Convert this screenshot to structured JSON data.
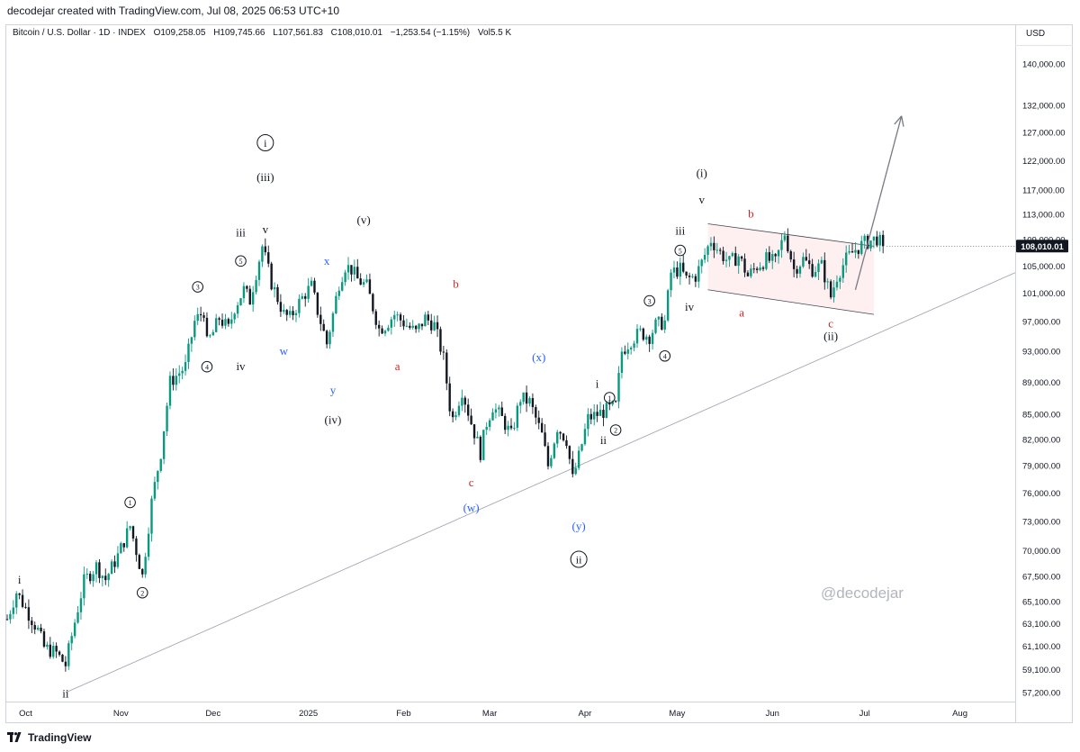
{
  "header": {
    "attribution": "decodejar created with TradingView.com, Jul 08, 2025 06:53 UTC+10"
  },
  "symbol_info": {
    "name": "Bitcoin / U.S. Dollar · 1D · INDEX",
    "open": "O109,258.05",
    "high": "H109,745.66",
    "low": "L107,561.83",
    "close": "C108,010.01",
    "change": "−1,253.54 (−1.15%)",
    "volume": "Vol5.5 K"
  },
  "currency": "USD",
  "watermark": "@decodejar",
  "footer": {
    "brand": "TradingView"
  },
  "chart_data": {
    "type": "candlestick",
    "symbol": "Bitcoin / U.S. Dollar",
    "scale": "log",
    "last_price": "108,010.01",
    "y_ticks": [
      "140,000.00",
      "132,000.00",
      "127,000.00",
      "122,000.00",
      "117,000.00",
      "113,000.00",
      "109,000.00",
      "105,000.00",
      "101,000.00",
      "97,000.00",
      "93,000.00",
      "89,000.00",
      "85,000.00",
      "82,000.00",
      "79,000.00",
      "76,000.00",
      "73,000.00",
      "70,000.00",
      "67,500.00",
      "65,100.00",
      "63,100.00",
      "61,100.00",
      "59,100.00",
      "57,200.00"
    ],
    "y_tick_values": [
      140000,
      132000,
      127000,
      122000,
      117000,
      113000,
      109000,
      105000,
      101000,
      97000,
      93000,
      89000,
      85000,
      82000,
      79000,
      76000,
      73000,
      70000,
      67500,
      65100,
      63100,
      61100,
      59100,
      57200
    ],
    "x_ticks": [
      {
        "label": "Oct",
        "idx": 0
      },
      {
        "label": "Nov",
        "idx": 31
      },
      {
        "label": "Dec",
        "idx": 61
      },
      {
        "label": "2025",
        "idx": 92
      },
      {
        "label": "Feb",
        "idx": 123
      },
      {
        "label": "Mar",
        "idx": 151
      },
      {
        "label": "Apr",
        "idx": 182
      },
      {
        "label": "May",
        "idx": 212
      },
      {
        "label": "Jun",
        "idx": 243
      },
      {
        "label": "Jul",
        "idx": 273
      },
      {
        "label": "Aug",
        "idx": 304
      }
    ],
    "x_range_days": [
      -6,
      322
    ],
    "price_path": [
      [
        -6,
        63500
      ],
      [
        -3,
        66000
      ],
      [
        0,
        64500
      ],
      [
        4,
        62500
      ],
      [
        6,
        61000
      ],
      [
        10,
        60500
      ],
      [
        13,
        59500
      ],
      [
        15,
        62000
      ],
      [
        19,
        67000
      ],
      [
        23,
        68500
      ],
      [
        26,
        67200
      ],
      [
        30,
        69500
      ],
      [
        34,
        72500
      ],
      [
        36,
        70000
      ],
      [
        38,
        67500
      ],
      [
        41,
        75000
      ],
      [
        44,
        80500
      ],
      [
        47,
        89000
      ],
      [
        52,
        91000
      ],
      [
        55,
        97000
      ],
      [
        58,
        98500
      ],
      [
        59,
        94000
      ],
      [
        61,
        95500
      ],
      [
        63,
        97500
      ],
      [
        66,
        96000
      ],
      [
        68,
        99000
      ],
      [
        71,
        101500
      ],
      [
        73,
        100000
      ],
      [
        76,
        106000
      ],
      [
        77,
        108000
      ],
      [
        80,
        102500
      ],
      [
        84,
        98000
      ],
      [
        86,
        97500
      ],
      [
        88,
        99000
      ],
      [
        91,
        101000
      ],
      [
        93,
        102000
      ],
      [
        95,
        98500
      ],
      [
        98,
        94000
      ],
      [
        100,
        98000
      ],
      [
        102,
        102500
      ],
      [
        104,
        105000
      ],
      [
        106,
        104500
      ],
      [
        108,
        103000
      ],
      [
        111,
        102000
      ],
      [
        113,
        99000
      ],
      [
        115,
        96000
      ],
      [
        117,
        96500
      ],
      [
        120,
        98000
      ],
      [
        124,
        96500
      ],
      [
        127,
        95500
      ],
      [
        130,
        97500
      ],
      [
        133,
        96500
      ],
      [
        136,
        92000
      ],
      [
        138,
        86000
      ],
      [
        139,
        84500
      ],
      [
        142,
        88000
      ],
      [
        145,
        84000
      ],
      [
        148,
        80500
      ],
      [
        150,
        84000
      ],
      [
        152,
        86000
      ],
      [
        155,
        84500
      ],
      [
        158,
        82500
      ],
      [
        161,
        87000
      ],
      [
        164,
        86500
      ],
      [
        168,
        82500
      ],
      [
        170,
        79000
      ],
      [
        173,
        83500
      ],
      [
        176,
        82000
      ],
      [
        178,
        77500
      ],
      [
        180,
        80000
      ],
      [
        183,
        84500
      ],
      [
        186,
        85000
      ],
      [
        189,
        85500
      ],
      [
        192,
        86000
      ],
      [
        194,
        93000
      ],
      [
        197,
        94500
      ],
      [
        200,
        95500
      ],
      [
        203,
        95000
      ],
      [
        205,
        96500
      ],
      [
        208,
        97000
      ],
      [
        210,
        104000
      ],
      [
        213,
        104500
      ],
      [
        215,
        103000
      ],
      [
        218,
        103500
      ],
      [
        220,
        105500
      ],
      [
        223,
        109000
      ],
      [
        226,
        107000
      ],
      [
        229,
        105500
      ],
      [
        232,
        106500
      ],
      [
        235,
        103500
      ],
      [
        238,
        105000
      ],
      [
        241,
        106000
      ],
      [
        244,
        105500
      ],
      [
        247,
        110000
      ],
      [
        250,
        104500
      ],
      [
        253,
        106000
      ],
      [
        256,
        104500
      ],
      [
        259,
        105000
      ],
      [
        262,
        100500
      ],
      [
        264,
        103500
      ],
      [
        267,
        106000
      ],
      [
        270,
        107500
      ],
      [
        273,
        108500
      ],
      [
        277,
        109200
      ],
      [
        279,
        108000
      ]
    ],
    "trendline_endpoints": [
      {
        "idx": 13,
        "price": 57200
      },
      {
        "idx": 322,
        "price": 104000
      }
    ],
    "channel": {
      "top_start": {
        "idx": 222,
        "price": 111500
      },
      "top_end": {
        "idx": 276,
        "price": 108000
      },
      "bottom_start": {
        "idx": 222,
        "price": 101500
      },
      "bottom_end": {
        "idx": 276,
        "price": 98000
      }
    },
    "projection_arrow": {
      "from": {
        "idx": 270,
        "price": 101500
      },
      "to": {
        "idx": 285,
        "price": 130000
      }
    },
    "wave_labels": [
      {
        "text": "i",
        "idx": -2,
        "price": 66800,
        "color": "#131722",
        "circled": false
      },
      {
        "text": "ii",
        "idx": 13,
        "price": 56800,
        "color": "#131722",
        "circled": false
      },
      {
        "text": "1",
        "idx": 34,
        "price": 74600,
        "color": "#131722",
        "circled": true
      },
      {
        "text": "2",
        "idx": 38,
        "price": 65600,
        "color": "#131722",
        "circled": true
      },
      {
        "text": "3",
        "idx": 56,
        "price": 101400,
        "color": "#131722",
        "circled": true
      },
      {
        "text": "4",
        "idx": 59,
        "price": 90500,
        "color": "#131722",
        "circled": true
      },
      {
        "text": "iii",
        "idx": 70,
        "price": 109500,
        "color": "#131722",
        "circled": false
      },
      {
        "text": "5",
        "idx": 70,
        "price": 105200,
        "color": "#131722",
        "circled": true
      },
      {
        "text": "iv",
        "idx": 70,
        "price": 90500,
        "color": "#131722",
        "circled": false
      },
      {
        "text": "v",
        "idx": 78,
        "price": 110000,
        "color": "#131722",
        "circled": false
      },
      {
        "text": "(iii)",
        "idx": 78,
        "price": 118500,
        "color": "#131722",
        "circled": false
      },
      {
        "text": "i",
        "idx": 78,
        "price": 124500,
        "color": "#131722",
        "circled": true
      },
      {
        "text": "w",
        "idx": 84,
        "price": 92500,
        "color": "#2962ff",
        "circled": false
      },
      {
        "text": "x",
        "idx": 98,
        "price": 105200,
        "color": "#2962ff",
        "circled": false
      },
      {
        "text": "y",
        "idx": 100,
        "price": 87500,
        "color": "#2962ff",
        "circled": false
      },
      {
        "text": "(iv)",
        "idx": 100,
        "price": 83900,
        "color": "#131722",
        "circled": false
      },
      {
        "text": "(v)",
        "idx": 110,
        "price": 111500,
        "color": "#131722",
        "circled": false
      },
      {
        "text": "a",
        "idx": 121,
        "price": 90500,
        "color": "#c62828",
        "circled": false
      },
      {
        "text": "b",
        "idx": 140,
        "price": 101800,
        "color": "#c62828",
        "circled": false
      },
      {
        "text": "c",
        "idx": 145,
        "price": 76700,
        "color": "#c62828",
        "circled": false
      },
      {
        "text": "(w)",
        "idx": 145,
        "price": 74000,
        "color": "#2962ff",
        "circled": false
      },
      {
        "text": "(x)",
        "idx": 167,
        "price": 91700,
        "color": "#2962ff",
        "circled": false
      },
      {
        "text": "(y)",
        "idx": 180,
        "price": 72100,
        "color": "#2962ff",
        "circled": false
      },
      {
        "text": "ii",
        "idx": 180,
        "price": 68800,
        "color": "#131722",
        "circled": true
      },
      {
        "text": "i",
        "idx": 186,
        "price": 88300,
        "color": "#131722",
        "circled": false
      },
      {
        "text": "1",
        "idx": 190,
        "price": 86600,
        "color": "#131722",
        "circled": true
      },
      {
        "text": "ii",
        "idx": 188,
        "price": 81500,
        "color": "#131722",
        "circled": false
      },
      {
        "text": "2",
        "idx": 192,
        "price": 82700,
        "color": "#131722",
        "circled": true
      },
      {
        "text": "3",
        "idx": 203,
        "price": 99400,
        "color": "#131722",
        "circled": true
      },
      {
        "text": "4",
        "idx": 208,
        "price": 91900,
        "color": "#131722",
        "circled": true
      },
      {
        "text": "iii",
        "idx": 213,
        "price": 109800,
        "color": "#131722",
        "circled": false
      },
      {
        "text": "5",
        "idx": 213,
        "price": 106800,
        "color": "#131722",
        "circled": true
      },
      {
        "text": "iv",
        "idx": 216,
        "price": 98500,
        "color": "#131722",
        "circled": false
      },
      {
        "text": "v",
        "idx": 220,
        "price": 114800,
        "color": "#131722",
        "circled": false
      },
      {
        "text": "(i)",
        "idx": 220,
        "price": 119200,
        "color": "#131722",
        "circled": false
      },
      {
        "text": "b",
        "idx": 236,
        "price": 112500,
        "color": "#c62828",
        "circled": false
      },
      {
        "text": "a",
        "idx": 233,
        "price": 97700,
        "color": "#c62828",
        "circled": false
      },
      {
        "text": "c",
        "idx": 262,
        "price": 96200,
        "color": "#c62828",
        "circled": false
      },
      {
        "text": "(ii)",
        "idx": 262,
        "price": 94500,
        "color": "#131722",
        "circled": false
      }
    ]
  }
}
